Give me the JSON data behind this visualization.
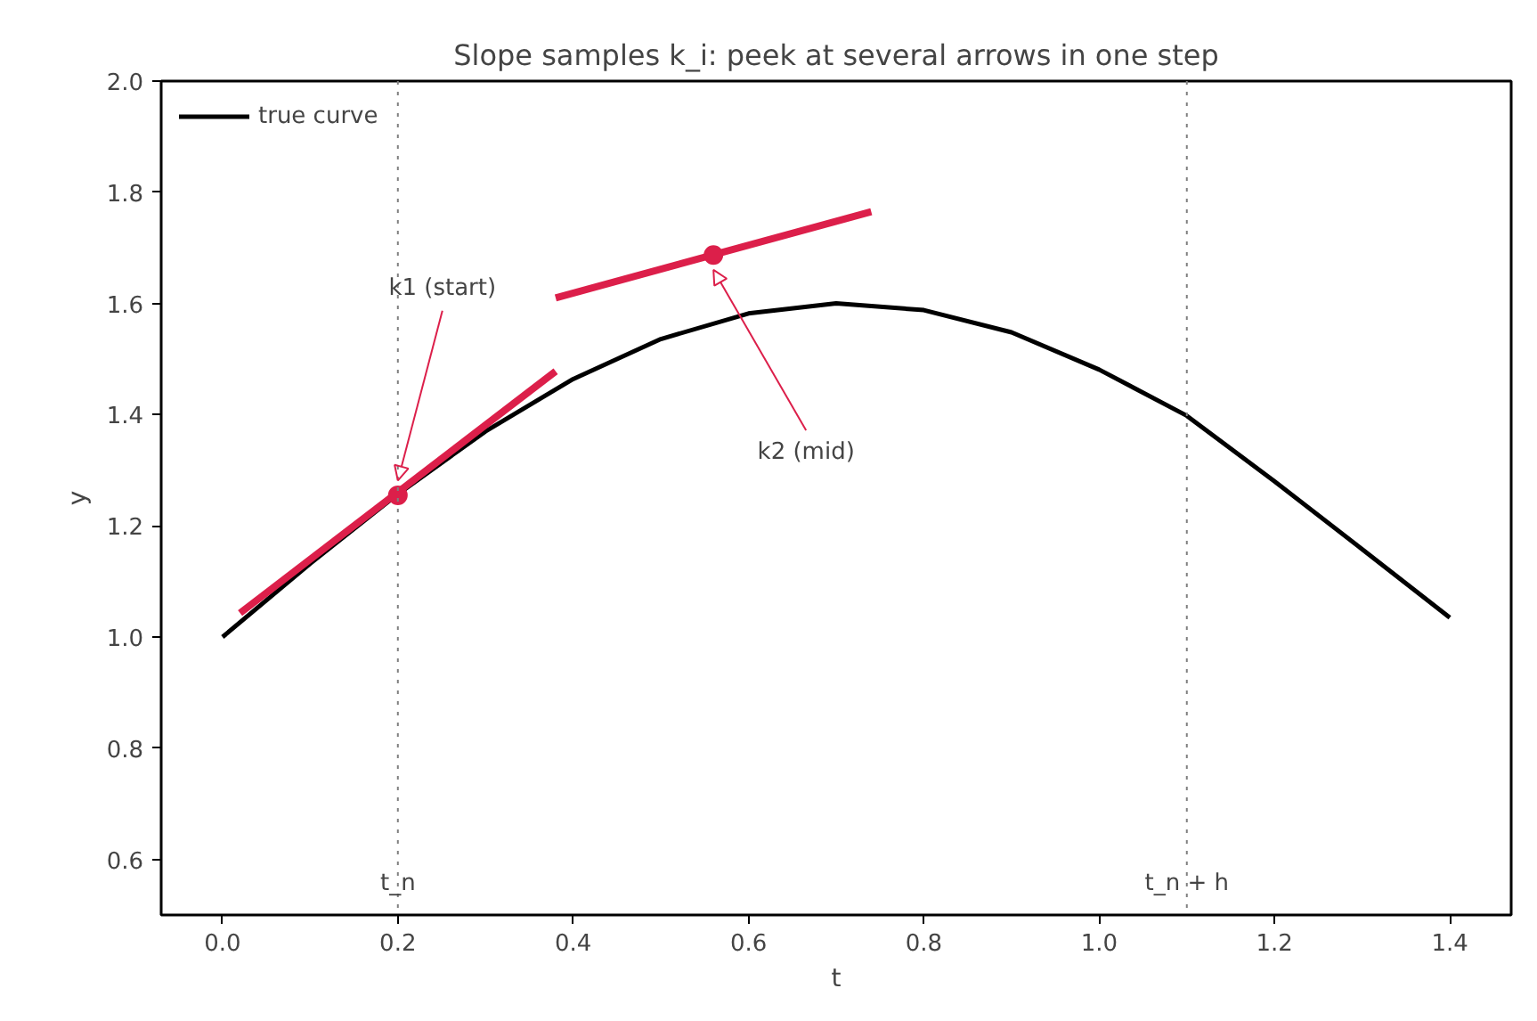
{
  "chart_data": {
    "type": "line",
    "title": "Slope samples k_i: peek at several arrows in one step",
    "xlabel": "t",
    "ylabel": "y",
    "xlim": [
      -0.07,
      1.47
    ],
    "ylim": [
      0.5,
      2.0
    ],
    "xticks": [
      {
        "value": 0,
        "label": "0.0"
      },
      {
        "value": 0.2,
        "label": "0.2"
      },
      {
        "value": 0.4,
        "label": "0.4"
      },
      {
        "value": 0.6,
        "label": "0.6"
      },
      {
        "value": 0.8,
        "label": "0.8"
      },
      {
        "value": 1.0,
        "label": "1.0"
      },
      {
        "value": 1.2,
        "label": "1.2"
      },
      {
        "value": 1.4,
        "label": "1.4"
      }
    ],
    "yticks": [
      {
        "value": 0.6,
        "label": "0.6"
      },
      {
        "value": 0.8,
        "label": "0.8"
      },
      {
        "value": 1.0,
        "label": "1.0"
      },
      {
        "value": 1.2,
        "label": "1.2"
      },
      {
        "value": 1.4,
        "label": "1.4"
      },
      {
        "value": 1.6,
        "label": "1.6"
      },
      {
        "value": 1.8,
        "label": "1.8"
      },
      {
        "value": 2.0,
        "label": "2.0"
      }
    ],
    "grid": false,
    "legend": "top left",
    "line_style": "solid",
    "series": [
      {
        "name": "true curve",
        "color": "#000000",
        "marker": "none",
        "x": [
          0,
          0.1,
          0.2,
          0.3,
          0.4,
          0.5,
          0.6,
          0.7,
          0.8,
          0.9,
          1.0,
          1.1,
          1.2,
          1.3,
          1.4
        ],
        "values": [
          1.0,
          1.132,
          1.257,
          1.37,
          1.464,
          1.536,
          1.582,
          1.6,
          1.588,
          1.548,
          1.481,
          1.398,
          1.28,
          1.158,
          1.035
        ]
      },
      {
        "color": "#dc1f4a",
        "marker": "none",
        "x": [
          0.02,
          0.38
        ],
        "values": [
          1.043,
          1.478
        ]
      },
      {
        "color": "#dc1f4a",
        "marker": "none",
        "x": [
          0.38,
          0.74
        ],
        "values": [
          1.61,
          1.765
        ]
      },
      {
        "type": "scatter",
        "color": "#dc1f4a",
        "marker": "circle",
        "x": [
          0.2,
          0.56
        ],
        "values": [
          1.255,
          1.687
        ]
      }
    ],
    "ref_lines": [
      {
        "axis": "x",
        "value": 0.2,
        "label": "t_n",
        "color": "#808080",
        "line_style": "dotted"
      },
      {
        "axis": "x",
        "value": 1.1,
        "label": "t_n + h",
        "color": "#808080",
        "line_style": "dotted"
      }
    ],
    "annotations": [
      {
        "text": "k1 (start)",
        "x": 0.2,
        "y": 1.255
      },
      {
        "text": "k2 (mid)",
        "x": 0.56,
        "y": 1.687
      }
    ]
  }
}
